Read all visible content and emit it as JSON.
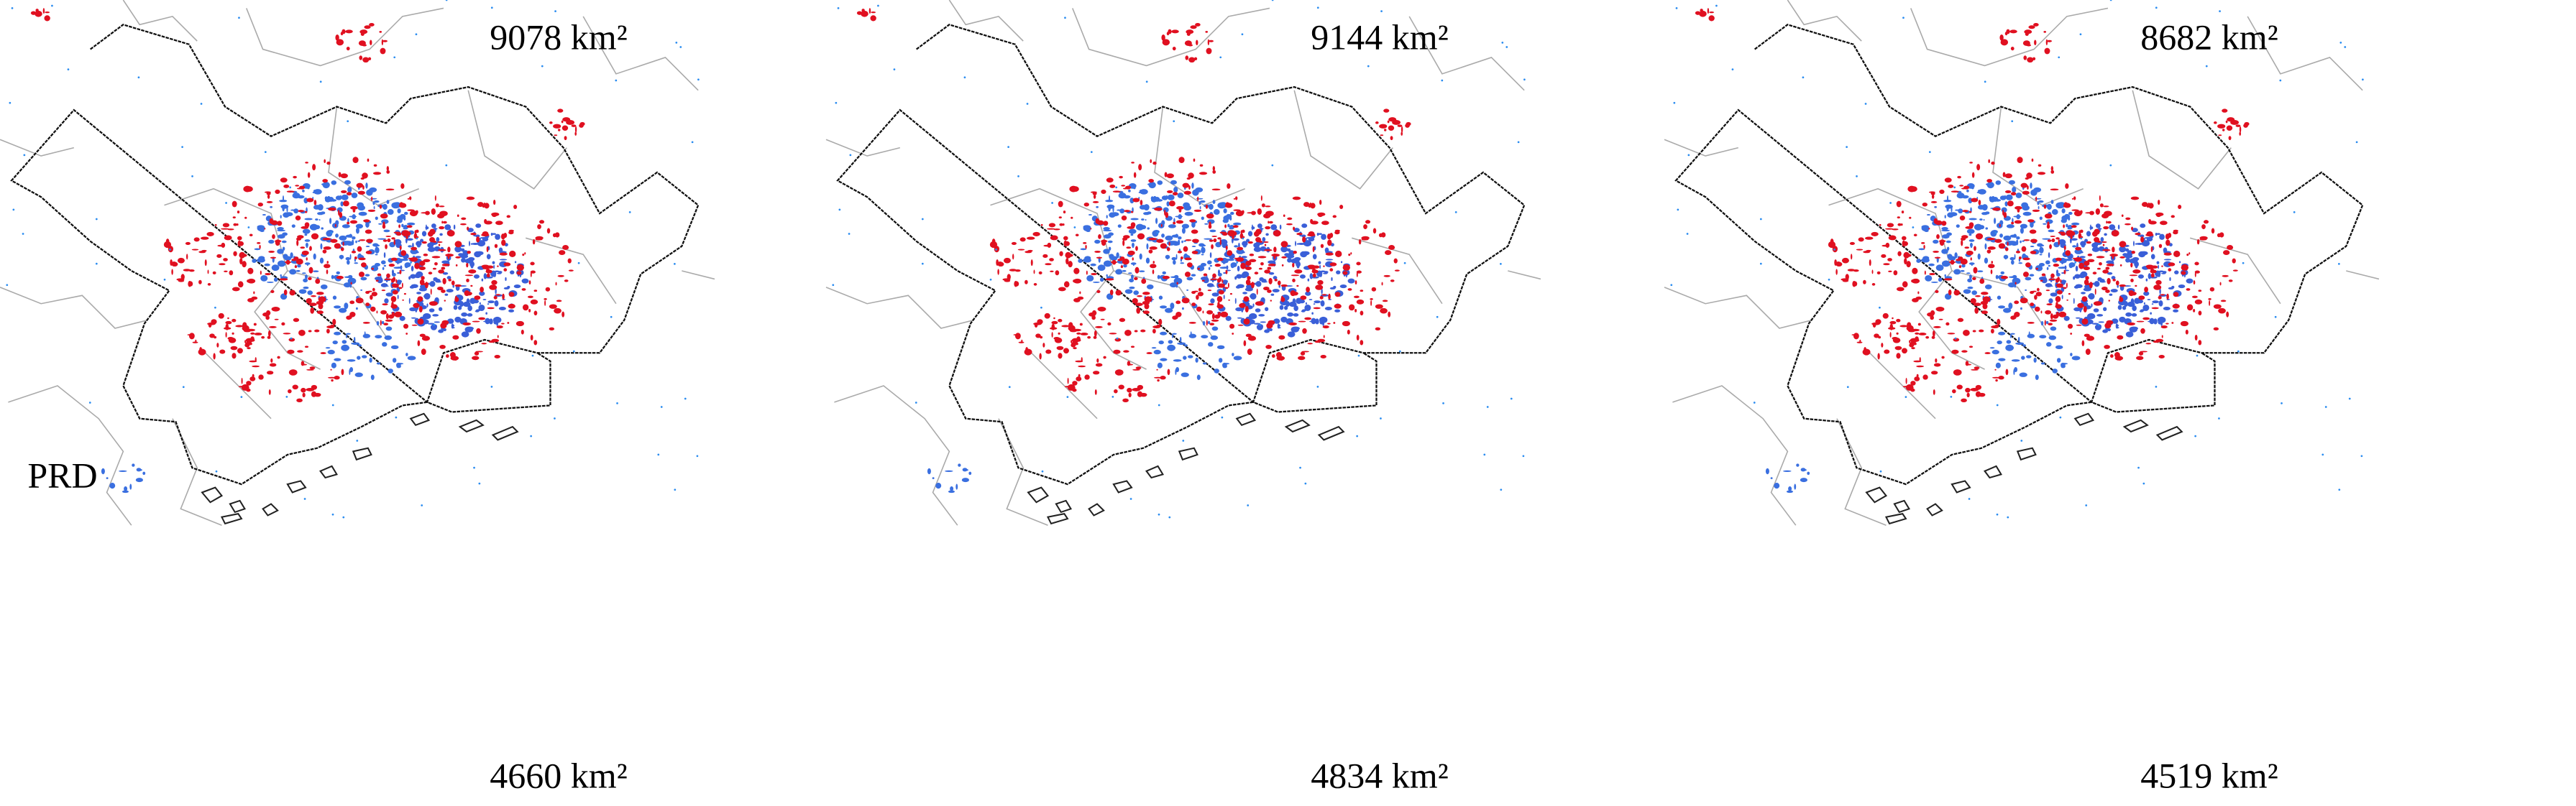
{
  "row_label": "PRD",
  "panels": [
    {
      "top_label": "9078 km²",
      "bottom_label": "4660 km²"
    },
    {
      "top_label": "9144 km²",
      "bottom_label": "4834 km²"
    },
    {
      "top_label": "8682 km²",
      "bottom_label": "4519 km²"
    }
  ]
}
